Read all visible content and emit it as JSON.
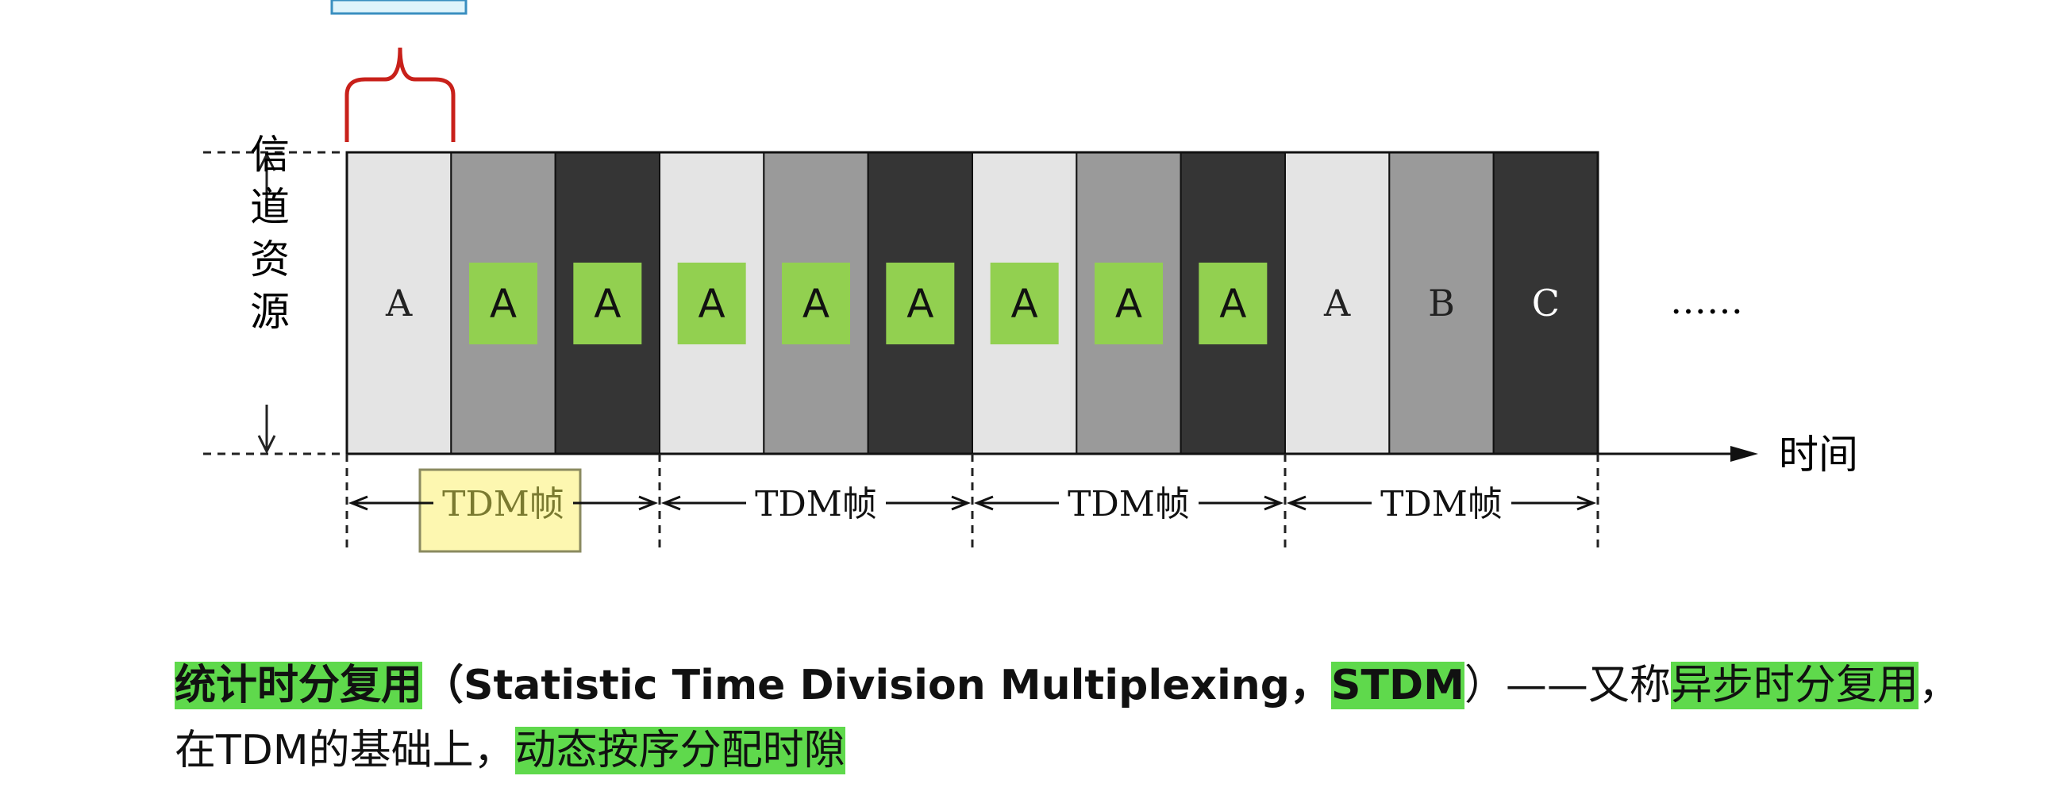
{
  "diagram": {
    "axis_label": "信道资源",
    "time_label": "时间",
    "ellipsis": "……",
    "slots": [
      {
        "label": "A",
        "boxed": false
      },
      {
        "label": "A",
        "boxed": true
      },
      {
        "label": "A",
        "boxed": true
      },
      {
        "label": "A",
        "boxed": true
      },
      {
        "label": "A",
        "boxed": true
      },
      {
        "label": "A",
        "boxed": true
      },
      {
        "label": "A",
        "boxed": true
      },
      {
        "label": "A",
        "boxed": true
      },
      {
        "label": "A",
        "boxed": true
      },
      {
        "label": "A",
        "boxed": false
      },
      {
        "label": "B",
        "boxed": false
      },
      {
        "label": "C",
        "boxed": false
      }
    ],
    "frames": [
      "TDM帧",
      "TDM帧",
      "TDM帧",
      "TDM帧"
    ]
  },
  "caption": {
    "line1": [
      "统计时分复用",
      "（Statistic Time Division Multiplexing，",
      "STDM",
      "）——又称",
      "异步时分复用",
      "，"
    ],
    "line2": [
      "在TDM的基础上，",
      "动态按序分配时隙"
    ]
  }
}
